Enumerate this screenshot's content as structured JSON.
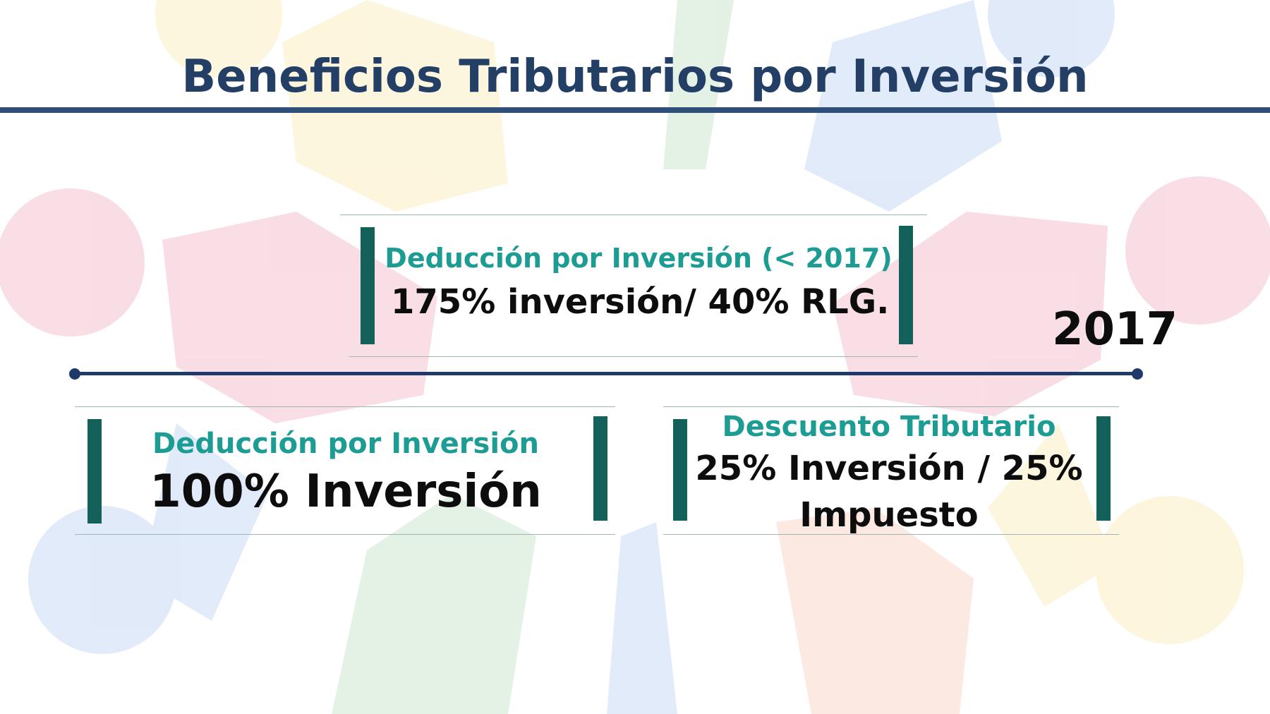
{
  "title": "Beneficios Tributarios por Inversión",
  "year_label": "2017",
  "boxes": {
    "top": {
      "heading": "Deducción por Inversión (< 2017)",
      "value": "175% inversión/ 40% RLG."
    },
    "bottom_left": {
      "heading": "Deducción por Inversión",
      "value": "100% Inversión"
    },
    "bottom_right": {
      "heading": "Descuento Tributario",
      "value_line1": "25% Inversión / 25%",
      "value_line2": "Impuesto"
    }
  },
  "colors": {
    "title": "#243f66",
    "heading": "#1c9c93",
    "bar": "#14605a",
    "timeline": "#1f3a6a"
  }
}
